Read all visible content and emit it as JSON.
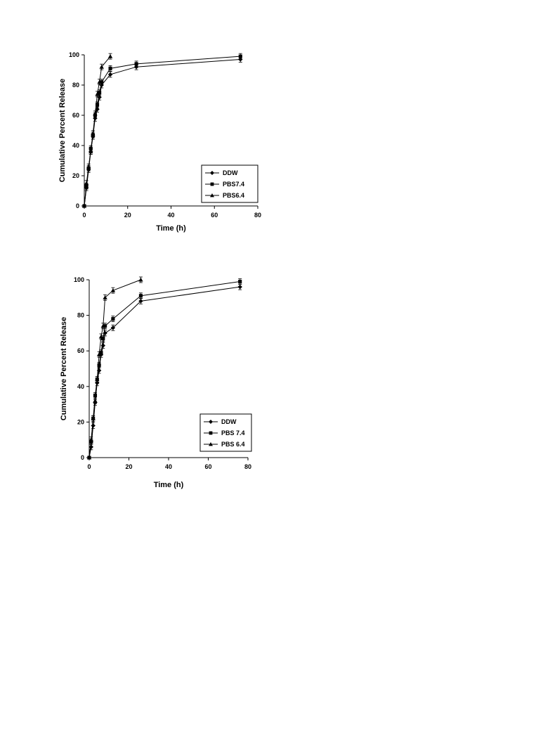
{
  "chart_data": [
    {
      "type": "line",
      "xlabel": "Time (h)",
      "ylabel": "Cumulative Percent Release",
      "xlim": [
        0,
        80
      ],
      "ylim": [
        0,
        100
      ],
      "xticks": [
        0,
        20,
        40,
        60,
        80
      ],
      "yticks": [
        0,
        20,
        40,
        60,
        80,
        100
      ],
      "grid": false,
      "legend": "bottom-right",
      "series": [
        {
          "name": "DDW",
          "marker": "diamond",
          "x": [
            0,
            1,
            2,
            3,
            4,
            5,
            6,
            7,
            8,
            12,
            24,
            72
          ],
          "y": [
            0,
            12,
            24,
            36,
            46,
            58,
            64,
            72,
            80,
            87,
            92,
            97
          ]
        },
        {
          "name": "PBS7.4",
          "marker": "square",
          "x": [
            0,
            1,
            2,
            3,
            4,
            5,
            6,
            7,
            8,
            12,
            24,
            72
          ],
          "y": [
            0,
            13,
            25,
            38,
            47,
            60,
            67,
            75,
            82,
            91,
            94,
            99
          ]
        },
        {
          "name": "PBS6.4",
          "marker": "triangle",
          "x": [
            0,
            1,
            2,
            3,
            4,
            5,
            6,
            7,
            8,
            12
          ],
          "y": [
            0,
            15,
            26,
            36,
            48,
            61,
            74,
            82,
            92,
            99
          ]
        }
      ]
    },
    {
      "type": "line",
      "xlabel": "Time (h)",
      "ylabel": "Cumulative Percent Release",
      "xlim": [
        0,
        80
      ],
      "ylim": [
        0,
        100
      ],
      "xticks": [
        0,
        20,
        40,
        60,
        80
      ],
      "yticks": [
        0,
        20,
        40,
        60,
        80,
        100
      ],
      "grid": false,
      "legend": "bottom-right",
      "series": [
        {
          "name": "DDW",
          "marker": "diamond",
          "x": [
            0,
            1,
            2,
            3,
            4,
            5,
            6,
            7,
            8,
            12,
            26,
            76
          ],
          "y": [
            0,
            6,
            18,
            31,
            42,
            49,
            58,
            63,
            70,
            73,
            88,
            96
          ]
        },
        {
          "name": "PBS 7.4",
          "marker": "square",
          "x": [
            0,
            1,
            2,
            3,
            4,
            5,
            6,
            7,
            8,
            12,
            26,
            76
          ],
          "y": [
            0,
            9,
            22,
            35,
            44,
            52,
            59,
            67,
            74,
            78,
            91,
            99
          ]
        },
        {
          "name": "PBS 6.4",
          "marker": "triangle",
          "x": [
            0,
            1,
            2,
            3,
            4,
            5,
            6,
            7,
            8,
            12,
            26
          ],
          "y": [
            0,
            10,
            22,
            32,
            44,
            58,
            68,
            74,
            90,
            94,
            100
          ]
        }
      ]
    }
  ]
}
